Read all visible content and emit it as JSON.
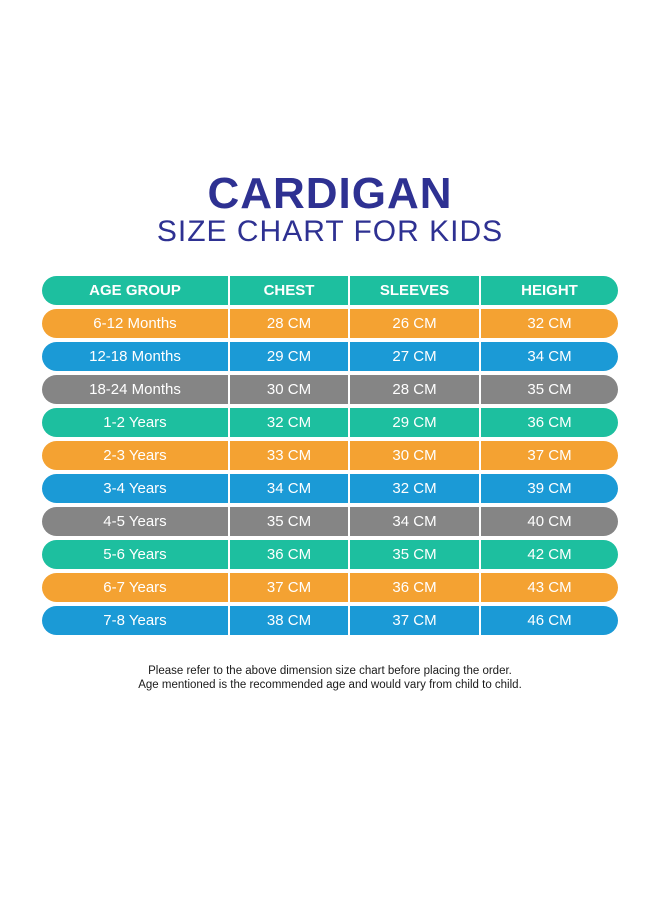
{
  "title": "CARDIGAN",
  "subtitle": "SIZE CHART FOR KIDS",
  "colors": {
    "title": "#2e3192",
    "teal": "#1dbf9f",
    "orange": "#f4a232",
    "blue": "#1b9ad6",
    "gray": "#858585"
  },
  "table": {
    "headers": [
      "AGE GROUP",
      "CHEST",
      "SLEEVES",
      "HEIGHT"
    ],
    "header_color": "teal",
    "rows": [
      {
        "age": "6-12 Months",
        "chest": "28 CM",
        "sleeves": "26 CM",
        "height": "32 CM",
        "color": "orange"
      },
      {
        "age": "12-18 Months",
        "chest": "29 CM",
        "sleeves": "27 CM",
        "height": "34 CM",
        "color": "blue"
      },
      {
        "age": "18-24 Months",
        "chest": "30 CM",
        "sleeves": "28 CM",
        "height": "35 CM",
        "color": "gray"
      },
      {
        "age": "1-2 Years",
        "chest": "32 CM",
        "sleeves": "29 CM",
        "height": "36 CM",
        "color": "teal"
      },
      {
        "age": "2-3 Years",
        "chest": "33 CM",
        "sleeves": "30 CM",
        "height": "37 CM",
        "color": "orange"
      },
      {
        "age": "3-4 Years",
        "chest": "34 CM",
        "sleeves": "32 CM",
        "height": "39 CM",
        "color": "blue"
      },
      {
        "age": "4-5 Years",
        "chest": "35 CM",
        "sleeves": "34 CM",
        "height": "40 CM",
        "color": "gray"
      },
      {
        "age": "5-6 Years",
        "chest": "36 CM",
        "sleeves": "35 CM",
        "height": "42 CM",
        "color": "teal"
      },
      {
        "age": "6-7 Years",
        "chest": "37 CM",
        "sleeves": "36 CM",
        "height": "43 CM",
        "color": "orange"
      },
      {
        "age": "7-8 Years",
        "chest": "38 CM",
        "sleeves": "37 CM",
        "height": "46 CM",
        "color": "blue"
      }
    ]
  },
  "notes": {
    "line1": "Please refer to the above dimension size chart before placing the order.",
    "line2": "Age mentioned is the recommended age and would vary from child to child."
  }
}
